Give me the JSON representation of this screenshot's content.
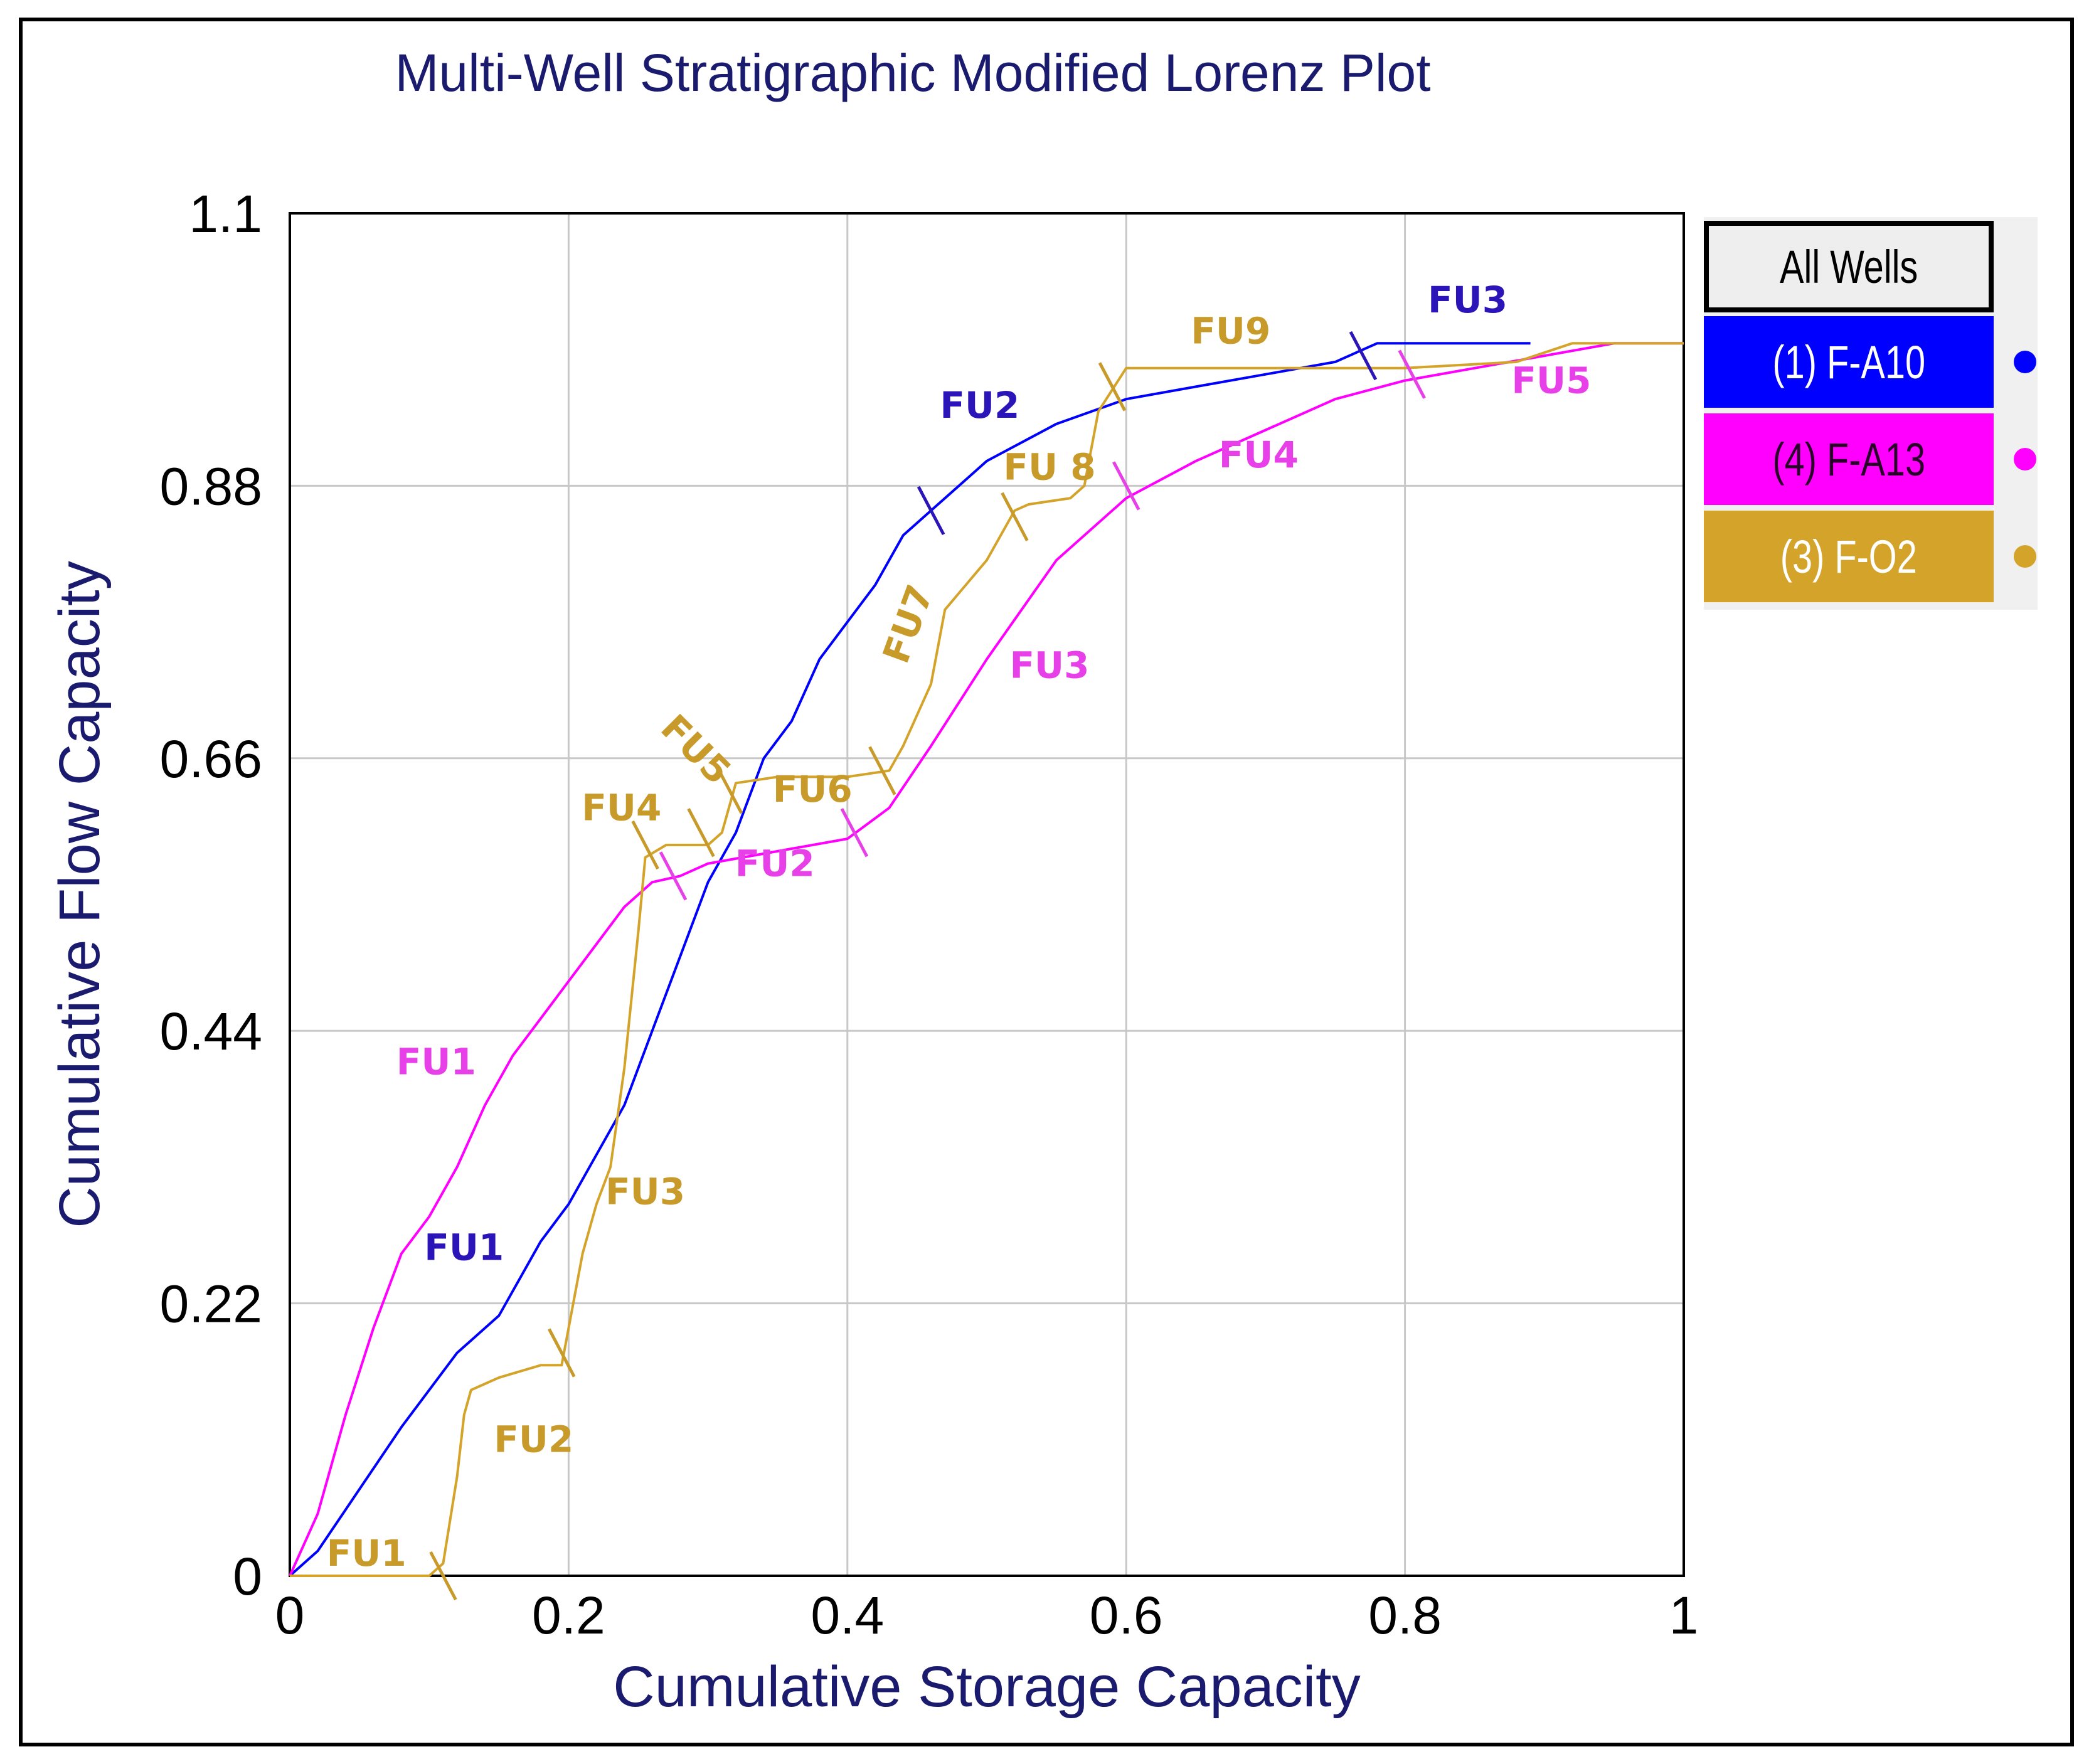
{
  "chart_data": {
    "type": "line",
    "title": "Multi-Well Stratigraphic Modified Lorenz Plot",
    "xlabel": "Cumulative Storage Capacity",
    "ylabel": "Cumulative Flow Capacity",
    "xlim": [
      0,
      1
    ],
    "ylim": [
      0,
      1.1
    ],
    "x_ticks": [
      0,
      0.2,
      0.4,
      0.6,
      0.8,
      1
    ],
    "x_tick_labels": [
      "0",
      "0.2",
      "0.4",
      "0.6",
      "0.8",
      "1"
    ],
    "y_ticks": [
      0,
      0.22,
      0.44,
      0.66,
      0.88,
      1.1
    ],
    "y_tick_labels": [
      "0",
      "0.22",
      "0.44",
      "0.66",
      "0.88",
      "1.1"
    ],
    "grid": true,
    "legend_header": "All Wells",
    "series": [
      {
        "name": "(1) F-A10",
        "color": "#0000ff",
        "label_color": "#2b14b8",
        "points": [
          [
            0,
            0
          ],
          [
            0.02,
            0.02
          ],
          [
            0.05,
            0.07
          ],
          [
            0.08,
            0.12
          ],
          [
            0.1,
            0.15
          ],
          [
            0.12,
            0.18
          ],
          [
            0.15,
            0.21
          ],
          [
            0.18,
            0.27
          ],
          [
            0.2,
            0.3
          ],
          [
            0.22,
            0.34
          ],
          [
            0.24,
            0.38
          ],
          [
            0.26,
            0.44
          ],
          [
            0.28,
            0.5
          ],
          [
            0.3,
            0.56
          ],
          [
            0.32,
            0.6
          ],
          [
            0.34,
            0.66
          ],
          [
            0.36,
            0.69
          ],
          [
            0.38,
            0.74
          ],
          [
            0.4,
            0.77
          ],
          [
            0.42,
            0.8
          ],
          [
            0.44,
            0.84
          ],
          [
            0.46,
            0.86
          ],
          [
            0.48,
            0.88
          ],
          [
            0.5,
            0.9
          ],
          [
            0.55,
            0.93
          ],
          [
            0.6,
            0.95
          ],
          [
            0.65,
            0.96
          ],
          [
            0.7,
            0.97
          ],
          [
            0.75,
            0.98
          ],
          [
            0.78,
            0.995
          ],
          [
            0.89,
            0.995
          ]
        ],
        "unit_labels": [
          {
            "text": "FU1",
            "x": 0.125,
            "y": 0.255
          },
          {
            "text": "FU2",
            "x": 0.495,
            "y": 0.935
          },
          {
            "text": "FU3",
            "x": 0.845,
            "y": 1.02
          }
        ],
        "boundaries": [
          {
            "x": 0.46,
            "y": 0.86
          },
          {
            "x": 0.77,
            "y": 0.985
          }
        ]
      },
      {
        "name": "(4) F-A13",
        "color": "#ff00ff",
        "label_color": "#e840e8",
        "points": [
          [
            0,
            0
          ],
          [
            0.02,
            0.05
          ],
          [
            0.04,
            0.13
          ],
          [
            0.06,
            0.2
          ],
          [
            0.08,
            0.26
          ],
          [
            0.1,
            0.29
          ],
          [
            0.12,
            0.33
          ],
          [
            0.14,
            0.38
          ],
          [
            0.16,
            0.42
          ],
          [
            0.18,
            0.45
          ],
          [
            0.2,
            0.48
          ],
          [
            0.22,
            0.51
          ],
          [
            0.24,
            0.54
          ],
          [
            0.26,
            0.56
          ],
          [
            0.28,
            0.565
          ],
          [
            0.3,
            0.575
          ],
          [
            0.35,
            0.585
          ],
          [
            0.4,
            0.595
          ],
          [
            0.43,
            0.62
          ],
          [
            0.46,
            0.67
          ],
          [
            0.5,
            0.74
          ],
          [
            0.55,
            0.82
          ],
          [
            0.6,
            0.87
          ],
          [
            0.65,
            0.9
          ],
          [
            0.7,
            0.925
          ],
          [
            0.75,
            0.95
          ],
          [
            0.8,
            0.965
          ],
          [
            0.85,
            0.975
          ],
          [
            0.9,
            0.985
          ],
          [
            0.95,
            0.995
          ],
          [
            1,
            0.995
          ]
        ],
        "unit_labels": [
          {
            "text": "FU1",
            "x": 0.105,
            "y": 0.405
          },
          {
            "text": "FU2",
            "x": 0.348,
            "y": 0.565
          },
          {
            "text": "FU3",
            "x": 0.545,
            "y": 0.725
          },
          {
            "text": "FU4",
            "x": 0.695,
            "y": 0.895
          },
          {
            "text": "FU5",
            "x": 0.905,
            "y": 0.955
          }
        ],
        "boundaries": [
          {
            "x": 0.275,
            "y": 0.565
          },
          {
            "x": 0.405,
            "y": 0.6
          },
          {
            "x": 0.6,
            "y": 0.88
          },
          {
            "x": 0.805,
            "y": 0.97
          }
        ]
      },
      {
        "name": "(3) F-O2",
        "color": "#d4a32a",
        "label_color": "#c79a2a",
        "points": [
          [
            0,
            0
          ],
          [
            0.1,
            0
          ],
          [
            0.11,
            0.01
          ],
          [
            0.12,
            0.08
          ],
          [
            0.125,
            0.13
          ],
          [
            0.13,
            0.15
          ],
          [
            0.15,
            0.16
          ],
          [
            0.18,
            0.17
          ],
          [
            0.195,
            0.17
          ],
          [
            0.2,
            0.2
          ],
          [
            0.21,
            0.26
          ],
          [
            0.22,
            0.3
          ],
          [
            0.23,
            0.33
          ],
          [
            0.24,
            0.41
          ],
          [
            0.25,
            0.52
          ],
          [
            0.255,
            0.58
          ],
          [
            0.27,
            0.59
          ],
          [
            0.3,
            0.59
          ],
          [
            0.31,
            0.6
          ],
          [
            0.32,
            0.64
          ],
          [
            0.35,
            0.645
          ],
          [
            0.4,
            0.645
          ],
          [
            0.43,
            0.65
          ],
          [
            0.44,
            0.67
          ],
          [
            0.46,
            0.72
          ],
          [
            0.47,
            0.78
          ],
          [
            0.5,
            0.82
          ],
          [
            0.52,
            0.86
          ],
          [
            0.53,
            0.865
          ],
          [
            0.56,
            0.87
          ],
          [
            0.57,
            0.88
          ],
          [
            0.58,
            0.94
          ],
          [
            0.6,
            0.975
          ],
          [
            0.65,
            0.975
          ],
          [
            0.7,
            0.975
          ],
          [
            0.8,
            0.975
          ],
          [
            0.88,
            0.98
          ],
          [
            0.92,
            0.995
          ],
          [
            1,
            0.995
          ]
        ],
        "unit_labels": [
          {
            "text": "FU1",
            "x": 0.055,
            "y": 0.008
          },
          {
            "text": "FU2",
            "x": 0.175,
            "y": 0.1
          },
          {
            "text": "FU3",
            "x": 0.255,
            "y": 0.3
          },
          {
            "text": "FU4",
            "x": 0.238,
            "y": 0.61
          },
          {
            "text": "FU5",
            "x": 0.285,
            "y": 0.66,
            "rotate": 45
          },
          {
            "text": "FU6",
            "x": 0.375,
            "y": 0.625
          },
          {
            "text": "FU7",
            "x": 0.452,
            "y": 0.765,
            "rotate": -70
          },
          {
            "text": "FU 8",
            "x": 0.545,
            "y": 0.885
          },
          {
            "text": "FU9",
            "x": 0.675,
            "y": 0.995
          }
        ],
        "boundaries": [
          {
            "x": 0.11,
            "y": 0
          },
          {
            "x": 0.195,
            "y": 0.18
          },
          {
            "x": 0.255,
            "y": 0.59
          },
          {
            "x": 0.295,
            "y": 0.6
          },
          {
            "x": 0.315,
            "y": 0.635
          },
          {
            "x": 0.425,
            "y": 0.65
          },
          {
            "x": 0.52,
            "y": 0.855
          },
          {
            "x": 0.59,
            "y": 0.96
          }
        ]
      }
    ]
  }
}
